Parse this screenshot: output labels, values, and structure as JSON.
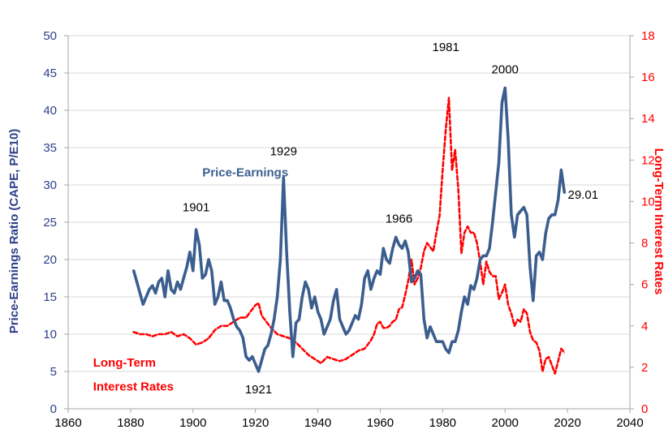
{
  "chart_data": {
    "type": "line",
    "title": "",
    "xlabel": "",
    "ylabel": "Price-Earnings Ratio (CAPE, P/E10)",
    "ylabel_right": "Long-Term Interest Rates",
    "xlim": [
      1860,
      2040
    ],
    "ylim": [
      0,
      50
    ],
    "ylim_right": [
      0,
      18
    ],
    "x_ticks": [
      1860,
      1880,
      1900,
      1920,
      1940,
      1960,
      1980,
      2000,
      2020,
      2040
    ],
    "y_ticks": [
      0,
      5,
      10,
      15,
      20,
      25,
      30,
      35,
      40,
      45,
      50
    ],
    "y_right_ticks": [
      0,
      2,
      4,
      6,
      8,
      10,
      12,
      14,
      16,
      18
    ],
    "grid": "horizontal",
    "colors": {
      "pe": "#3b5e8f",
      "rates": "#ff0000",
      "axis_left": "#2e3f8a",
      "axis_right": "#ff0000"
    },
    "series": [
      {
        "name": "Price-Earnings",
        "axis": "left",
        "style": "solid",
        "x": [
          1881,
          1882,
          1883,
          1884,
          1885,
          1886,
          1887,
          1888,
          1889,
          1890,
          1891,
          1892,
          1893,
          1894,
          1895,
          1896,
          1897,
          1898,
          1899,
          1900,
          1901,
          1902,
          1903,
          1904,
          1905,
          1906,
          1907,
          1908,
          1909,
          1910,
          1911,
          1912,
          1913,
          1914,
          1915,
          1916,
          1917,
          1918,
          1919,
          1920,
          1921,
          1922,
          1923,
          1924,
          1925,
          1926,
          1927,
          1928,
          1929,
          1930,
          1931,
          1932,
          1933,
          1934,
          1935,
          1936,
          1937,
          1938,
          1939,
          1940,
          1941,
          1942,
          1943,
          1944,
          1945,
          1946,
          1947,
          1948,
          1949,
          1950,
          1951,
          1952,
          1953,
          1954,
          1955,
          1956,
          1957,
          1958,
          1959,
          1960,
          1961,
          1962,
          1963,
          1964,
          1965,
          1966,
          1967,
          1968,
          1969,
          1970,
          1971,
          1972,
          1973,
          1974,
          1975,
          1976,
          1977,
          1978,
          1979,
          1980,
          1981,
          1982,
          1983,
          1984,
          1985,
          1986,
          1987,
          1988,
          1989,
          1990,
          1991,
          1992,
          1993,
          1994,
          1995,
          1996,
          1997,
          1998,
          1999,
          2000,
          2001,
          2002,
          2003,
          2004,
          2005,
          2006,
          2007,
          2008,
          2009,
          2010,
          2011,
          2012,
          2013,
          2014,
          2015,
          2016,
          2017,
          2018,
          2019
        ],
        "values": [
          18.5,
          17.0,
          15.5,
          14.0,
          15.0,
          16.0,
          16.5,
          15.5,
          17.0,
          17.5,
          15.0,
          18.5,
          16.0,
          15.5,
          17.0,
          16.0,
          17.5,
          19.0,
          21.0,
          18.5,
          24.0,
          22.0,
          17.5,
          18.0,
          20.0,
          18.5,
          14.0,
          15.0,
          17.0,
          14.5,
          14.5,
          13.5,
          12.0,
          11.0,
          10.5,
          9.5,
          7.0,
          6.5,
          7.0,
          6.0,
          5.0,
          6.5,
          8.0,
          8.5,
          10.0,
          12.0,
          15.0,
          20.0,
          31.0,
          21.0,
          13.0,
          7.0,
          11.5,
          12.0,
          15.0,
          17.0,
          16.0,
          13.5,
          15.0,
          13.0,
          12.0,
          10.0,
          11.0,
          12.0,
          14.5,
          16.0,
          12.0,
          11.0,
          10.0,
          10.5,
          11.5,
          12.5,
          12.0,
          14.0,
          17.5,
          18.5,
          16.0,
          17.5,
          18.5,
          18.0,
          21.5,
          20.0,
          19.5,
          21.5,
          23.0,
          22.0,
          21.5,
          22.5,
          21.0,
          17.0,
          17.5,
          18.5,
          18.0,
          12.0,
          9.5,
          11.0,
          10.0,
          9.0,
          9.0,
          9.0,
          8.0,
          7.5,
          9.0,
          9.0,
          10.5,
          13.0,
          15.0,
          14.0,
          16.5,
          16.0,
          17.5,
          20.0,
          20.5,
          20.5,
          21.5,
          25.0,
          29.0,
          33.0,
          41.0,
          43.0,
          36.0,
          26.0,
          23.0,
          26.0,
          26.5,
          27.0,
          26.0,
          19.0,
          14.5,
          20.5,
          21.0,
          20.0,
          23.5,
          25.5,
          26.0,
          26.0,
          28.0,
          32.0,
          29.01
        ]
      },
      {
        "name": "Long-Term Interest Rates",
        "axis": "right",
        "style": "dashed",
        "x": [
          1881,
          1883,
          1885,
          1887,
          1889,
          1891,
          1893,
          1895,
          1897,
          1899,
          1901,
          1903,
          1905,
          1907,
          1909,
          1911,
          1913,
          1915,
          1917,
          1919,
          1920,
          1921,
          1922,
          1923,
          1925,
          1927,
          1929,
          1931,
          1933,
          1935,
          1937,
          1939,
          1940,
          1941,
          1943,
          1945,
          1947,
          1949,
          1951,
          1953,
          1955,
          1957,
          1958,
          1959,
          1960,
          1961,
          1962,
          1963,
          1964,
          1965,
          1966,
          1967,
          1968,
          1969,
          1970,
          1971,
          1972,
          1973,
          1974,
          1975,
          1976,
          1977,
          1978,
          1979,
          1980,
          1981,
          1982,
          1983,
          1984,
          1985,
          1986,
          1987,
          1988,
          1989,
          1990,
          1991,
          1992,
          1993,
          1994,
          1995,
          1996,
          1997,
          1998,
          1999,
          2000,
          2001,
          2002,
          2003,
          2004,
          2005,
          2006,
          2007,
          2008,
          2009,
          2010,
          2011,
          2012,
          2013,
          2014,
          2015,
          2016,
          2017,
          2018,
          2019
        ],
        "values": [
          3.7,
          3.6,
          3.6,
          3.5,
          3.6,
          3.6,
          3.7,
          3.5,
          3.6,
          3.4,
          3.1,
          3.2,
          3.4,
          3.8,
          4.0,
          4.0,
          4.2,
          4.4,
          4.4,
          4.8,
          5.0,
          5.1,
          4.5,
          4.3,
          3.9,
          3.6,
          3.5,
          3.4,
          3.2,
          2.9,
          2.6,
          2.4,
          2.3,
          2.2,
          2.5,
          2.4,
          2.3,
          2.4,
          2.6,
          2.8,
          2.9,
          3.3,
          3.6,
          4.1,
          4.2,
          3.9,
          3.9,
          4.0,
          4.2,
          4.3,
          4.8,
          4.9,
          5.5,
          6.2,
          7.2,
          6.0,
          6.3,
          6.8,
          7.6,
          8.0,
          7.8,
          7.6,
          8.5,
          9.3,
          11.5,
          13.5,
          15.0,
          11.5,
          12.5,
          10.6,
          7.5,
          8.5,
          8.8,
          8.5,
          8.5,
          8.0,
          7.1,
          6.0,
          7.1,
          6.6,
          6.4,
          6.4,
          5.3,
          5.6,
          6.0,
          5.0,
          4.6,
          4.0,
          4.3,
          4.2,
          4.8,
          4.6,
          3.7,
          3.3,
          3.2,
          2.8,
          1.8,
          2.4,
          2.5,
          2.1,
          1.7,
          2.3,
          2.9,
          2.7
        ]
      }
    ],
    "annotations": [
      {
        "text": "1901",
        "x": 1901,
        "y": 27
      },
      {
        "text": "1921",
        "x": 1921,
        "y": 2.6
      },
      {
        "text": "1929",
        "x": 1929,
        "y": 34.5
      },
      {
        "text": "1966",
        "x": 1966,
        "y": 25.5
      },
      {
        "text": "1981",
        "x": 1981,
        "y": 48.5
      },
      {
        "text": "2000",
        "x": 2000,
        "y": 45.5
      },
      {
        "text": "29.01",
        "x": 2025,
        "y": 28.7
      },
      {
        "text": "Price-Earnings",
        "x": 1903,
        "y": 31.7,
        "color": "pe"
      },
      {
        "text": "Long-Term",
        "x": 1868,
        "y": 6.2,
        "color": "rates"
      },
      {
        "text": "Interest Rates",
        "x": 1868,
        "y": 3.0,
        "color": "rates"
      }
    ]
  }
}
